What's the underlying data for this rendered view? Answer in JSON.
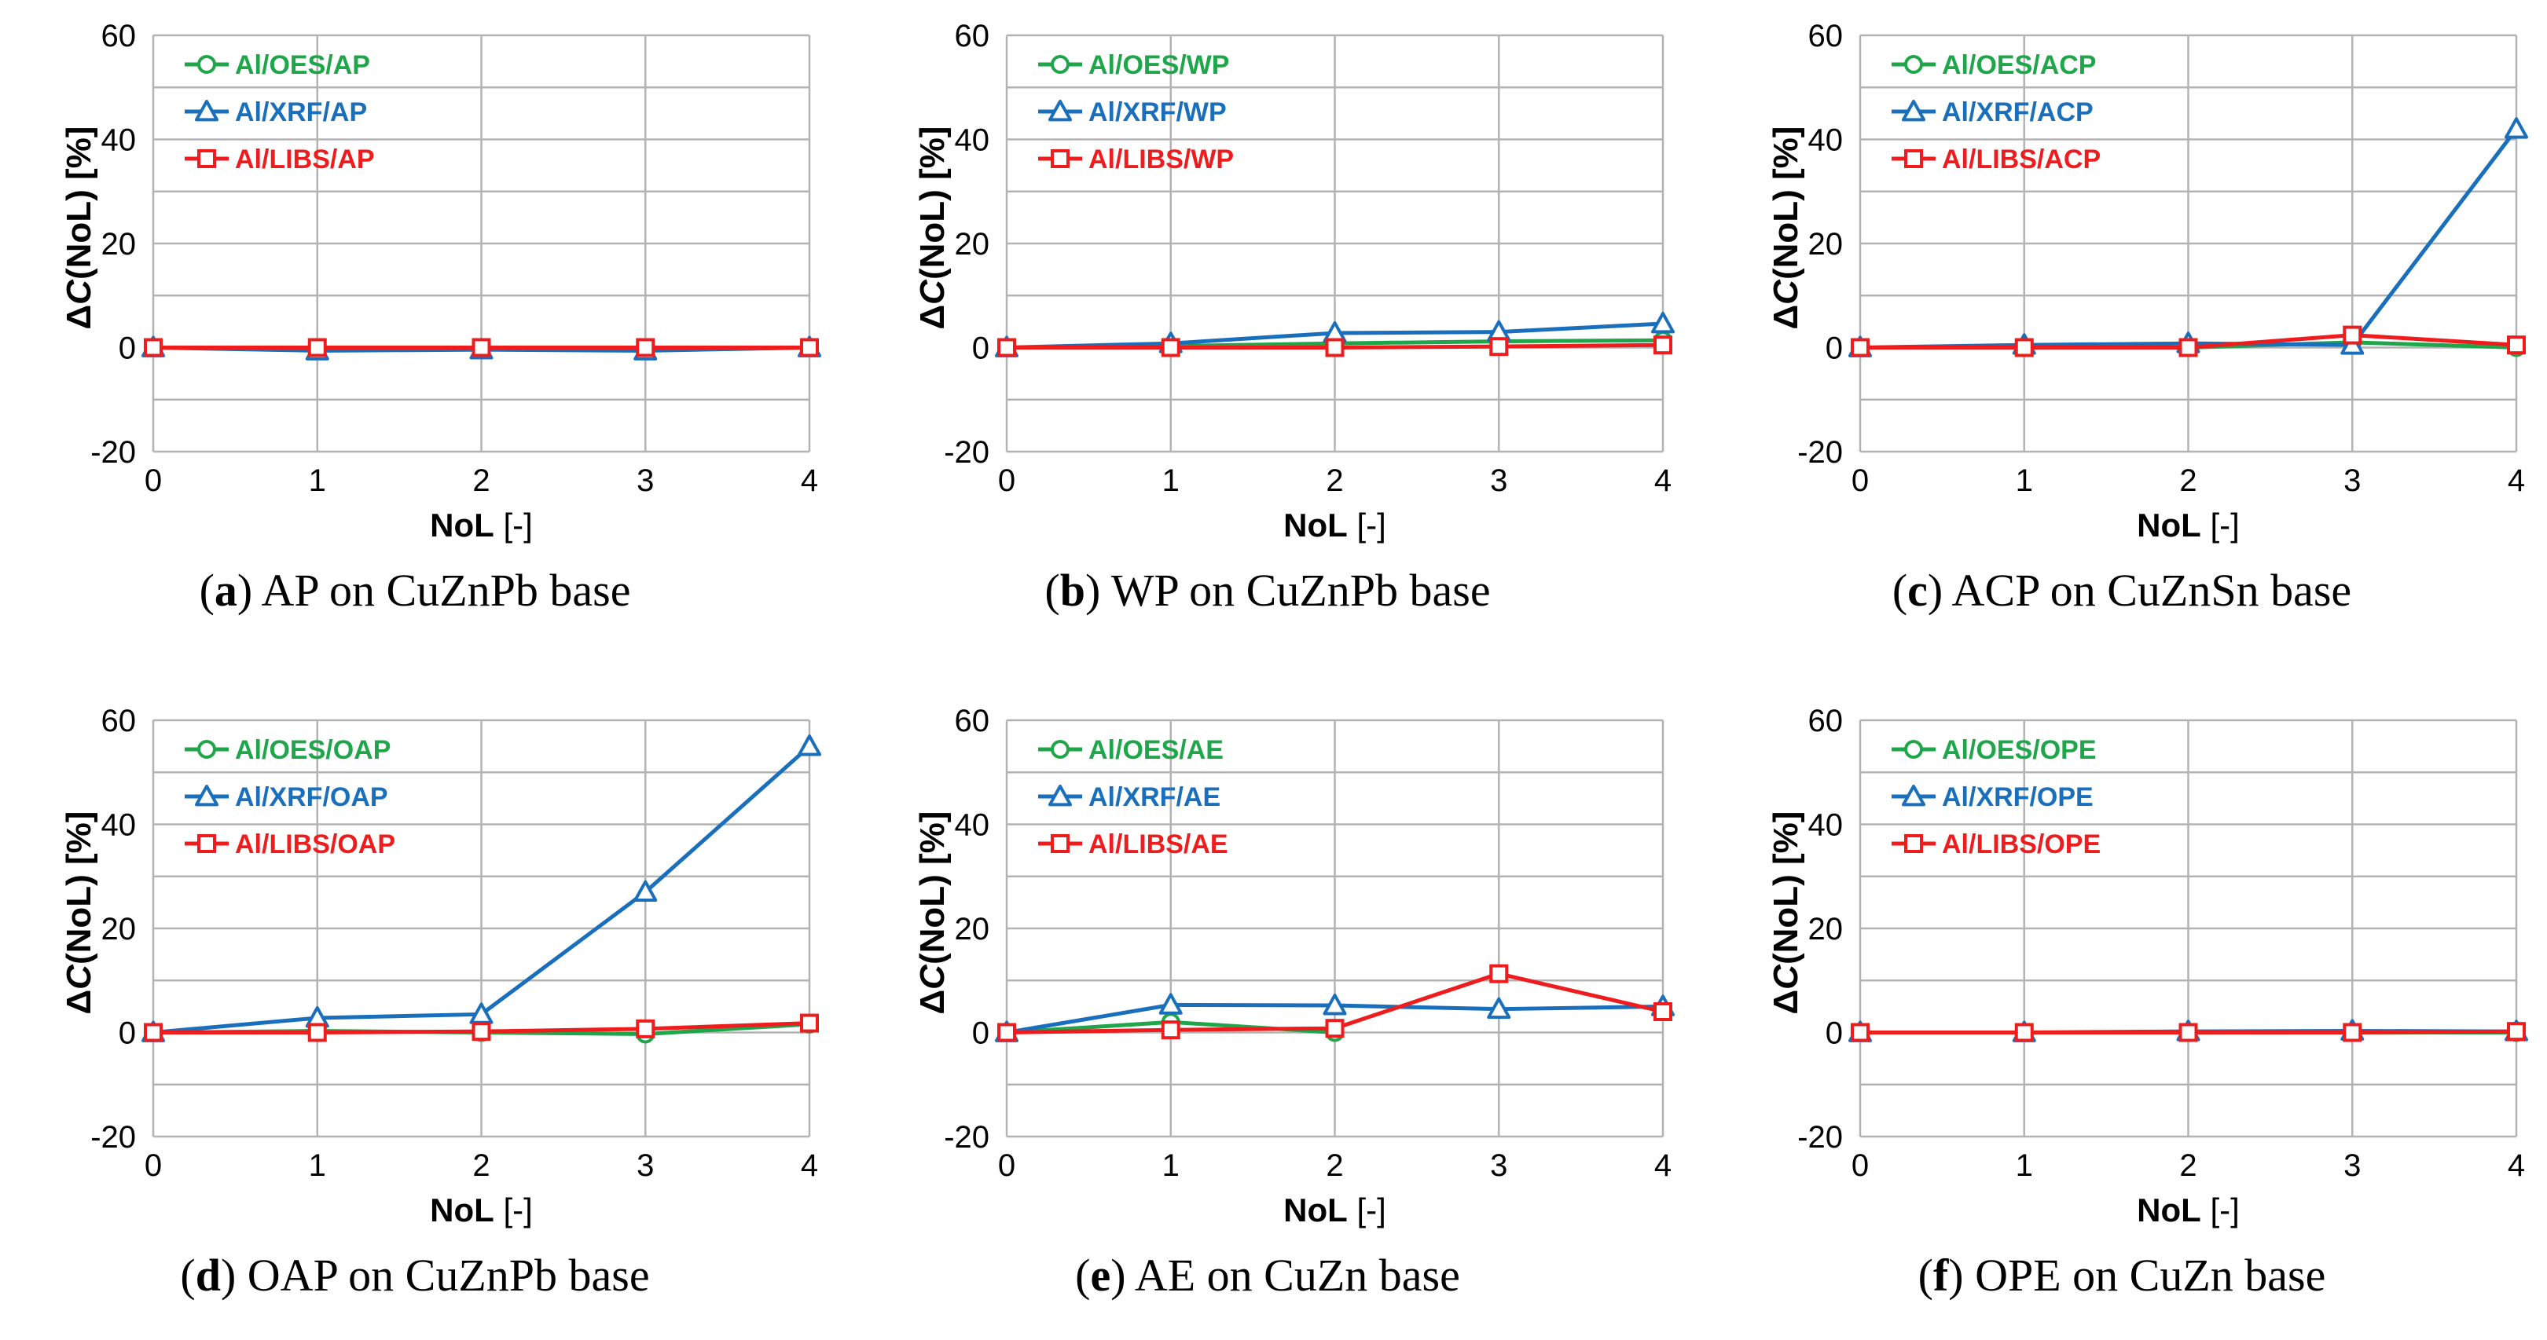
{
  "colors": {
    "oes": "#1fa64a",
    "xrf": "#1a6fbd",
    "libs": "#ee1c1c",
    "grid": "#b3b3b3"
  },
  "common": {
    "ylabel_prefix": "Δ",
    "ylabel_var": "C",
    "ylabel_suffix": "(NoL) [%]",
    "xlabel_bold": "NoL",
    "xlabel_rest": " [-]"
  },
  "chart_data": [
    {
      "type": "line",
      "letter": "a",
      "caption": "AP on CuZnPb base",
      "x": [
        0,
        1,
        2,
        3,
        4
      ],
      "xlim": [
        0,
        4
      ],
      "ylim": [
        -20,
        60
      ],
      "yticks": [
        -20,
        0,
        20,
        40,
        60
      ],
      "xticks": [
        0,
        1,
        2,
        3,
        4
      ],
      "xlabel": "NoL [-]",
      "ylabel": "ΔC(NoL) [%]",
      "grid": true,
      "legend": "top-left",
      "series": [
        {
          "name": "Al/OES/AP",
          "marker": "circle",
          "values": [
            0,
            0,
            0,
            0,
            0
          ]
        },
        {
          "name": "Al/XRF/AP",
          "marker": "triangle",
          "values": [
            0,
            -0.6,
            -0.4,
            -0.6,
            0
          ]
        },
        {
          "name": "Al/LIBS/AP",
          "marker": "square",
          "values": [
            0,
            0,
            0,
            0,
            0
          ]
        }
      ]
    },
    {
      "type": "line",
      "letter": "b",
      "caption": "WP on CuZnPb base",
      "x": [
        0,
        1,
        2,
        3,
        4
      ],
      "xlim": [
        0,
        4
      ],
      "ylim": [
        -20,
        60
      ],
      "yticks": [
        -20,
        0,
        20,
        40,
        60
      ],
      "xticks": [
        0,
        1,
        2,
        3,
        4
      ],
      "xlabel": "NoL [-]",
      "ylabel": "ΔC(NoL) [%]",
      "grid": true,
      "legend": "top-left",
      "series": [
        {
          "name": "Al/OES/WP",
          "marker": "circle",
          "values": [
            0,
            0.3,
            0.8,
            1.2,
            1.4
          ]
        },
        {
          "name": "Al/XRF/WP",
          "marker": "triangle",
          "values": [
            0,
            0.8,
            2.8,
            3.0,
            4.6
          ]
        },
        {
          "name": "Al/LIBS/WP",
          "marker": "square",
          "values": [
            0,
            0,
            0,
            0.2,
            0.5
          ]
        }
      ]
    },
    {
      "type": "line",
      "letter": "c",
      "caption": "ACP on CuZnSn base",
      "x": [
        0,
        1,
        2,
        3,
        4
      ],
      "xlim": [
        0,
        4
      ],
      "ylim": [
        -20,
        60
      ],
      "yticks": [
        -20,
        0,
        20,
        40,
        60
      ],
      "xticks": [
        0,
        1,
        2,
        3,
        4
      ],
      "xlabel": "NoL [-]",
      "ylabel": "ΔC(NoL) [%]",
      "grid": true,
      "legend": "top-left",
      "series": [
        {
          "name": "Al/OES/ACP",
          "marker": "circle",
          "values": [
            0,
            0,
            0,
            1.0,
            0
          ]
        },
        {
          "name": "Al/XRF/ACP",
          "marker": "triangle",
          "values": [
            0,
            0.5,
            0.8,
            0.5,
            42
          ]
        },
        {
          "name": "Al/LIBS/ACP",
          "marker": "square",
          "values": [
            0,
            0,
            0,
            2.4,
            0.5
          ]
        }
      ]
    },
    {
      "type": "line",
      "letter": "d",
      "caption": "OAP on CuZnPb base",
      "x": [
        0,
        1,
        2,
        3,
        4
      ],
      "xlim": [
        0,
        4
      ],
      "ylim": [
        -20,
        60
      ],
      "yticks": [
        -20,
        0,
        20,
        40,
        60
      ],
      "xticks": [
        0,
        1,
        2,
        3,
        4
      ],
      "xlabel": "NoL [-]",
      "ylabel": "ΔC(NoL) [%]",
      "grid": true,
      "legend": "top-left",
      "series": [
        {
          "name": "Al/OES/OAP",
          "marker": "circle",
          "values": [
            0,
            0.3,
            0,
            -0.3,
            1.6
          ]
        },
        {
          "name": "Al/XRF/OAP",
          "marker": "triangle",
          "values": [
            0,
            2.8,
            3.5,
            27,
            55
          ]
        },
        {
          "name": "Al/LIBS/OAP",
          "marker": "square",
          "values": [
            0,
            0,
            0.2,
            0.7,
            1.8
          ]
        }
      ]
    },
    {
      "type": "line",
      "letter": "e",
      "caption": "AE on CuZn base",
      "x": [
        0,
        1,
        2,
        3,
        4
      ],
      "xlim": [
        0,
        4
      ],
      "ylim": [
        -20,
        60
      ],
      "yticks": [
        -20,
        0,
        20,
        40,
        60
      ],
      "xticks": [
        0,
        1,
        2,
        3,
        4
      ],
      "xlabel": "NoL [-]",
      "ylabel": "ΔC(NoL) [%]",
      "grid": true,
      "legend": "top-left",
      "series": [
        {
          "name": "Al/OES/AE",
          "marker": "circle",
          "values": [
            0,
            2.0,
            0,
            null,
            null
          ]
        },
        {
          "name": "Al/XRF/AE",
          "marker": "triangle",
          "values": [
            0,
            5.3,
            5.2,
            4.5,
            5.0
          ]
        },
        {
          "name": "Al/LIBS/AE",
          "marker": "square",
          "values": [
            0,
            0.5,
            0.8,
            11.3,
            4.0
          ]
        }
      ]
    },
    {
      "type": "line",
      "letter": "f",
      "caption": "OPE on CuZn base",
      "x": [
        0,
        1,
        2,
        3,
        4
      ],
      "xlim": [
        0,
        4
      ],
      "ylim": [
        -20,
        60
      ],
      "yticks": [
        -20,
        0,
        20,
        40,
        60
      ],
      "xticks": [
        0,
        1,
        2,
        3,
        4
      ],
      "xlabel": "NoL [-]",
      "ylabel": "ΔC(NoL) [%]",
      "grid": true,
      "legend": "top-left",
      "series": [
        {
          "name": "Al/OES/OPE",
          "marker": "circle",
          "values": [
            0,
            0,
            0,
            0,
            0
          ]
        },
        {
          "name": "Al/XRF/OPE",
          "marker": "triangle",
          "values": [
            0,
            0,
            0.2,
            0.3,
            0.2
          ]
        },
        {
          "name": "Al/LIBS/OPE",
          "marker": "square",
          "values": [
            0,
            0,
            0,
            0,
            0.2
          ]
        }
      ]
    }
  ]
}
